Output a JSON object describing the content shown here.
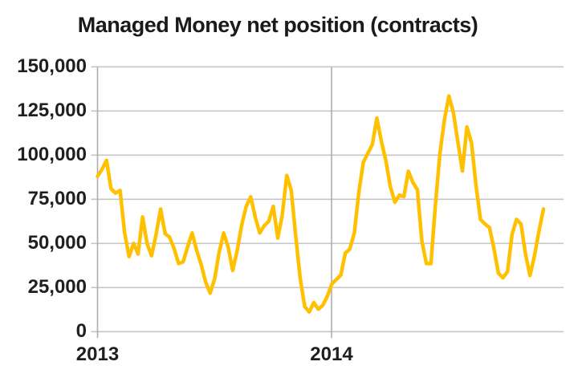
{
  "chart_data": {
    "type": "line",
    "title": "Managed Money net position (contracts)",
    "x_axis": {
      "tick_labels": [
        "2013",
        "2014"
      ],
      "points_per_year": 52,
      "gridlines_at_year_start": true
    },
    "y_axis": {
      "min": 0,
      "max": 150000,
      "step": 25000,
      "tick_labels": [
        "150,000",
        "125,000",
        "100,000",
        "75,000",
        "50,000",
        "25,000",
        "0"
      ]
    },
    "grid": true,
    "legend_position": "none",
    "series": [
      {
        "name": "Managed Money net position (contracts)",
        "color": "#FFC000",
        "values": [
          88000,
          92000,
          97000,
          81000,
          78500,
          80000,
          56000,
          42500,
          50000,
          44000,
          65000,
          50000,
          43000,
          55000,
          69500,
          55500,
          53500,
          47000,
          38600,
          39500,
          48000,
          55900,
          46000,
          38000,
          28000,
          21800,
          30000,
          45000,
          55900,
          48000,
          34700,
          46000,
          60500,
          71000,
          76400,
          65000,
          55900,
          60000,
          62500,
          71000,
          53000,
          66000,
          88500,
          80000,
          54000,
          30000,
          14200,
          11200,
          16500,
          12700,
          15000,
          20000,
          27000,
          29500,
          32000,
          44500,
          46800,
          56000,
          79000,
          96000,
          101000,
          106000,
          121000,
          108000,
          97000,
          82000,
          73300,
          77300,
          76500,
          90900,
          84500,
          80500,
          51400,
          38600,
          38600,
          72000,
          101000,
          120000,
          133500,
          124000,
          107400,
          91000,
          115900,
          107000,
          83000,
          63600,
          61000,
          59000,
          47000,
          33000,
          30500,
          34000,
          55000,
          63600,
          61000,
          44000,
          31800,
          43000,
          57000,
          69500
        ]
      }
    ]
  },
  "colors": {
    "line": "#FFC000",
    "gridline": "#c6c6c6",
    "axis_line": "#aeaeae",
    "text": "#1f1f1f"
  }
}
